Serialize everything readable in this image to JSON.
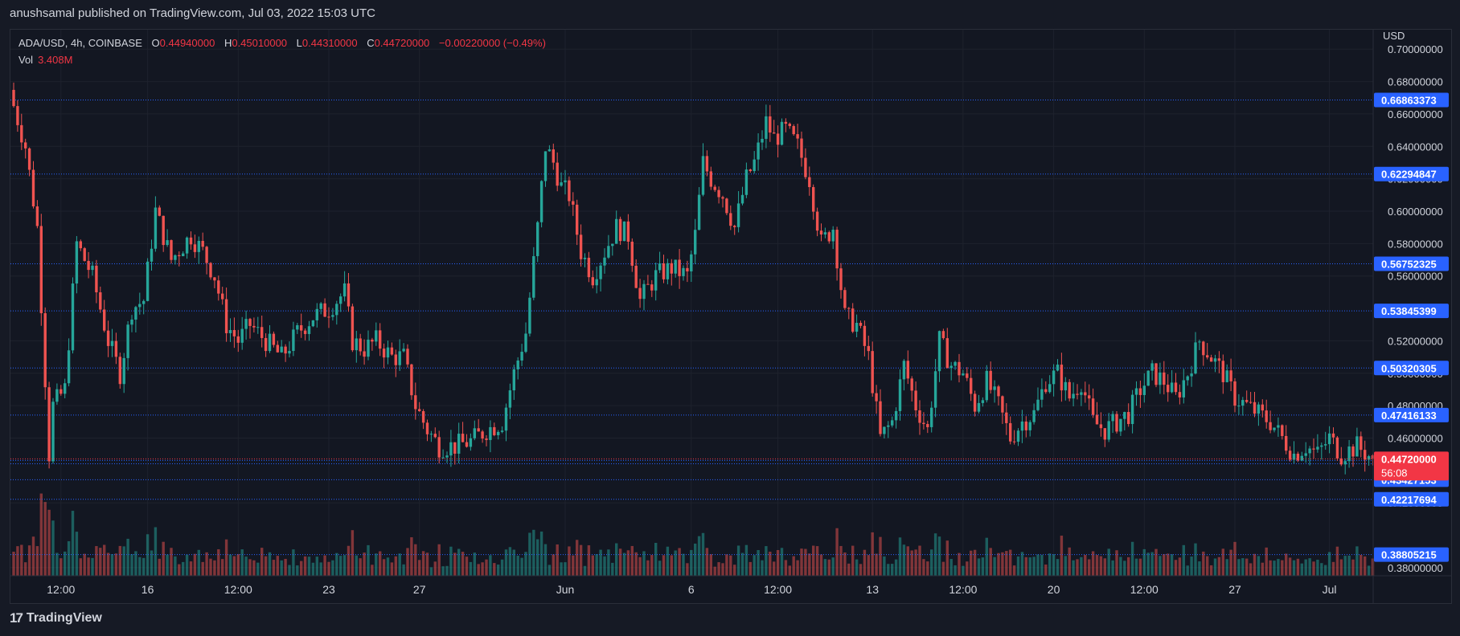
{
  "header": {
    "publish_line": "anushsamal published on TradingView.com, Jul 03, 2022 15:03 UTC"
  },
  "legend": {
    "symbol": "ADA/USD, 4h, COINBASE",
    "open_label": "O",
    "open": "0.44940000",
    "high_label": "H",
    "high": "0.45010000",
    "low_label": "L",
    "low": "0.44310000",
    "close_label": "C",
    "close": "0.44720000",
    "change": "−0.00220000 (−0.49%)",
    "vol_label": "Vol",
    "vol_value": "3.408M"
  },
  "footer": {
    "brand": "TradingView",
    "brand_icon": "tradingview-logo-icon"
  },
  "colors": {
    "up": "#26a69a",
    "down": "#ef5350",
    "level": "#2962ff",
    "price": "#f23645",
    "bg": "#131722",
    "grid": "#1e222d"
  },
  "chart_data": {
    "type": "candlestick",
    "symbol": "ADA/USD",
    "interval": "4h",
    "exchange": "COINBASE",
    "currency_label": "USD",
    "ylim": [
      0.375,
      0.712
    ],
    "y_ticks": [
      "0.70000000",
      "0.68000000",
      "0.66000000",
      "0.64000000",
      "0.62000000",
      "0.60000000",
      "0.58000000",
      "0.56000000",
      "0.52000000",
      "0.50000000",
      "0.48000000",
      "0.46000000",
      "0.42000000",
      "0.38000000"
    ],
    "x_ticks": [
      "12:00",
      "16",
      "12:00",
      "23",
      "27",
      "Jun",
      "6",
      "12:00",
      "13",
      "12:00",
      "20",
      "12:00",
      "27",
      "Jul"
    ],
    "x_tick_index": [
      12,
      34,
      57,
      80,
      103,
      140,
      172,
      194,
      218,
      241,
      264,
      287,
      310,
      334
    ],
    "levels": [
      {
        "price": 0.66863373,
        "label": "0.66863373"
      },
      {
        "price": 0.62294847,
        "label": "0.62294847"
      },
      {
        "price": 0.56752325,
        "label": "0.56752325"
      },
      {
        "price": 0.53845399,
        "label": "0.53845399"
      },
      {
        "price": 0.50320305,
        "label": "0.50320305"
      },
      {
        "price": 0.47416133,
        "label": "0.47416133"
      },
      {
        "price": 0.44619068,
        "label": "0.44619068"
      },
      {
        "price": 0.44413876,
        "label": "0.44413876"
      },
      {
        "price": 0.43427153,
        "label": "0.43427153"
      },
      {
        "price": 0.42217694,
        "label": "0.42217694"
      },
      {
        "price": 0.38805215,
        "label": "0.38805215"
      }
    ],
    "current_price": {
      "price": 0.4472,
      "label": "0.44720000",
      "countdown": "56:08"
    },
    "close_anchors": [
      [
        0,
        0.665
      ],
      [
        3,
        0.64
      ],
      [
        6,
        0.59
      ],
      [
        9,
        0.45
      ],
      [
        10,
        0.48
      ],
      [
        13,
        0.49
      ],
      [
        16,
        0.58
      ],
      [
        20,
        0.56
      ],
      [
        24,
        0.52
      ],
      [
        27,
        0.5
      ],
      [
        30,
        0.54
      ],
      [
        33,
        0.545
      ],
      [
        36,
        0.6
      ],
      [
        40,
        0.57
      ],
      [
        45,
        0.585
      ],
      [
        48,
        0.575
      ],
      [
        51,
        0.56
      ],
      [
        54,
        0.53
      ],
      [
        57,
        0.52
      ],
      [
        60,
        0.53
      ],
      [
        64,
        0.52
      ],
      [
        68,
        0.51
      ],
      [
        72,
        0.525
      ],
      [
        76,
        0.535
      ],
      [
        80,
        0.54
      ],
      [
        84,
        0.55
      ],
      [
        86,
        0.52
      ],
      [
        89,
        0.515
      ],
      [
        92,
        0.52
      ],
      [
        96,
        0.51
      ],
      [
        99,
        0.51
      ],
      [
        102,
        0.48
      ],
      [
        105,
        0.465
      ],
      [
        108,
        0.455
      ],
      [
        112,
        0.455
      ],
      [
        116,
        0.458
      ],
      [
        120,
        0.465
      ],
      [
        124,
        0.47
      ],
      [
        127,
        0.5
      ],
      [
        130,
        0.525
      ],
      [
        133,
        0.59
      ],
      [
        135,
        0.64
      ],
      [
        137,
        0.63
      ],
      [
        139,
        0.615
      ],
      [
        141,
        0.61
      ],
      [
        144,
        0.575
      ],
      [
        147,
        0.56
      ],
      [
        150,
        0.575
      ],
      [
        153,
        0.59
      ],
      [
        156,
        0.585
      ],
      [
        159,
        0.545
      ],
      [
        163,
        0.56
      ],
      [
        167,
        0.565
      ],
      [
        171,
        0.56
      ],
      [
        173,
        0.585
      ],
      [
        175,
        0.63
      ],
      [
        177,
        0.62
      ],
      [
        180,
        0.61
      ],
      [
        183,
        0.59
      ],
      [
        186,
        0.62
      ],
      [
        188,
        0.63
      ],
      [
        191,
        0.655
      ],
      [
        193,
        0.645
      ],
      [
        196,
        0.65
      ],
      [
        199,
        0.64
      ],
      [
        202,
        0.62
      ],
      [
        205,
        0.58
      ],
      [
        208,
        0.59
      ],
      [
        211,
        0.535
      ],
      [
        214,
        0.53
      ],
      [
        217,
        0.51
      ],
      [
        220,
        0.46
      ],
      [
        223,
        0.47
      ],
      [
        226,
        0.505
      ],
      [
        229,
        0.48
      ],
      [
        232,
        0.465
      ],
      [
        235,
        0.52
      ],
      [
        238,
        0.505
      ],
      [
        241,
        0.5
      ],
      [
        244,
        0.48
      ],
      [
        247,
        0.495
      ],
      [
        250,
        0.48
      ],
      [
        253,
        0.46
      ],
      [
        256,
        0.47
      ],
      [
        259,
        0.475
      ],
      [
        262,
        0.495
      ],
      [
        265,
        0.5
      ],
      [
        268,
        0.485
      ],
      [
        271,
        0.495
      ],
      [
        274,
        0.47
      ],
      [
        277,
        0.465
      ],
      [
        280,
        0.47
      ],
      [
        283,
        0.475
      ],
      [
        286,
        0.49
      ],
      [
        289,
        0.5
      ],
      [
        292,
        0.495
      ],
      [
        295,
        0.485
      ],
      [
        298,
        0.5
      ],
      [
        301,
        0.52
      ],
      [
        304,
        0.51
      ],
      [
        307,
        0.5
      ],
      [
        310,
        0.485
      ],
      [
        313,
        0.48
      ],
      [
        316,
        0.475
      ],
      [
        319,
        0.47
      ],
      [
        322,
        0.46
      ],
      [
        325,
        0.45
      ],
      [
        328,
        0.455
      ],
      [
        331,
        0.45
      ],
      [
        334,
        0.46
      ],
      [
        337,
        0.45
      ],
      [
        341,
        0.455
      ],
      [
        344,
        0.449
      ],
      [
        345,
        0.4472
      ]
    ]
  }
}
